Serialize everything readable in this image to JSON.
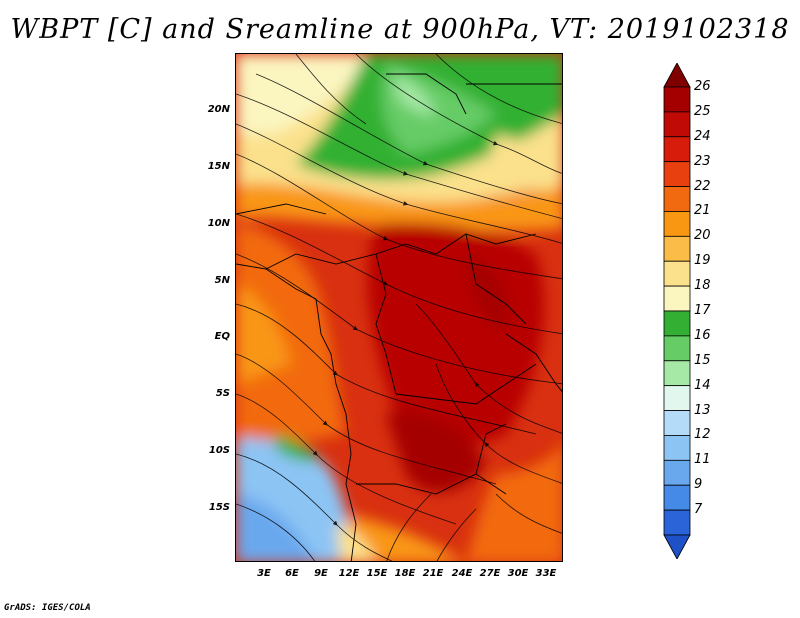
{
  "title": "WBPT [C] and Sreamline at 900hPa, VT: 2019102318",
  "credit": "GrADS: IGES/COLA",
  "map": {
    "lat_labels": [
      "20N",
      "15N",
      "10N",
      "5N",
      "EQ",
      "5S",
      "10S",
      "15S"
    ],
    "lon_labels": [
      "3E",
      "6E",
      "9E",
      "12E",
      "15E",
      "18E",
      "21E",
      "24E",
      "27E",
      "30E",
      "33E"
    ],
    "lat_range": [
      -20,
      24
    ],
    "lon_range": [
      0,
      35
    ]
  },
  "colorbar": {
    "levels": [
      "26",
      "25",
      "24",
      "23",
      "22",
      "21",
      "20",
      "19",
      "18",
      "17",
      "16",
      "15",
      "14",
      "13",
      "12",
      "11",
      "9",
      "7"
    ],
    "colors": [
      "#a50000",
      "#c00a05",
      "#d81c0c",
      "#e8400f",
      "#f26a10",
      "#f99612",
      "#fbbd47",
      "#fbe18c",
      "#fbf5c0",
      "#33b033",
      "#66cc66",
      "#a6e8a6",
      "#e2f8ef",
      "#b4dcf8",
      "#8cc4f4",
      "#6aa8ee",
      "#448ae6",
      "#2a64d8"
    ],
    "extend_color_top": "#800000",
    "extend_color_bottom": "#1e50c8"
  }
}
